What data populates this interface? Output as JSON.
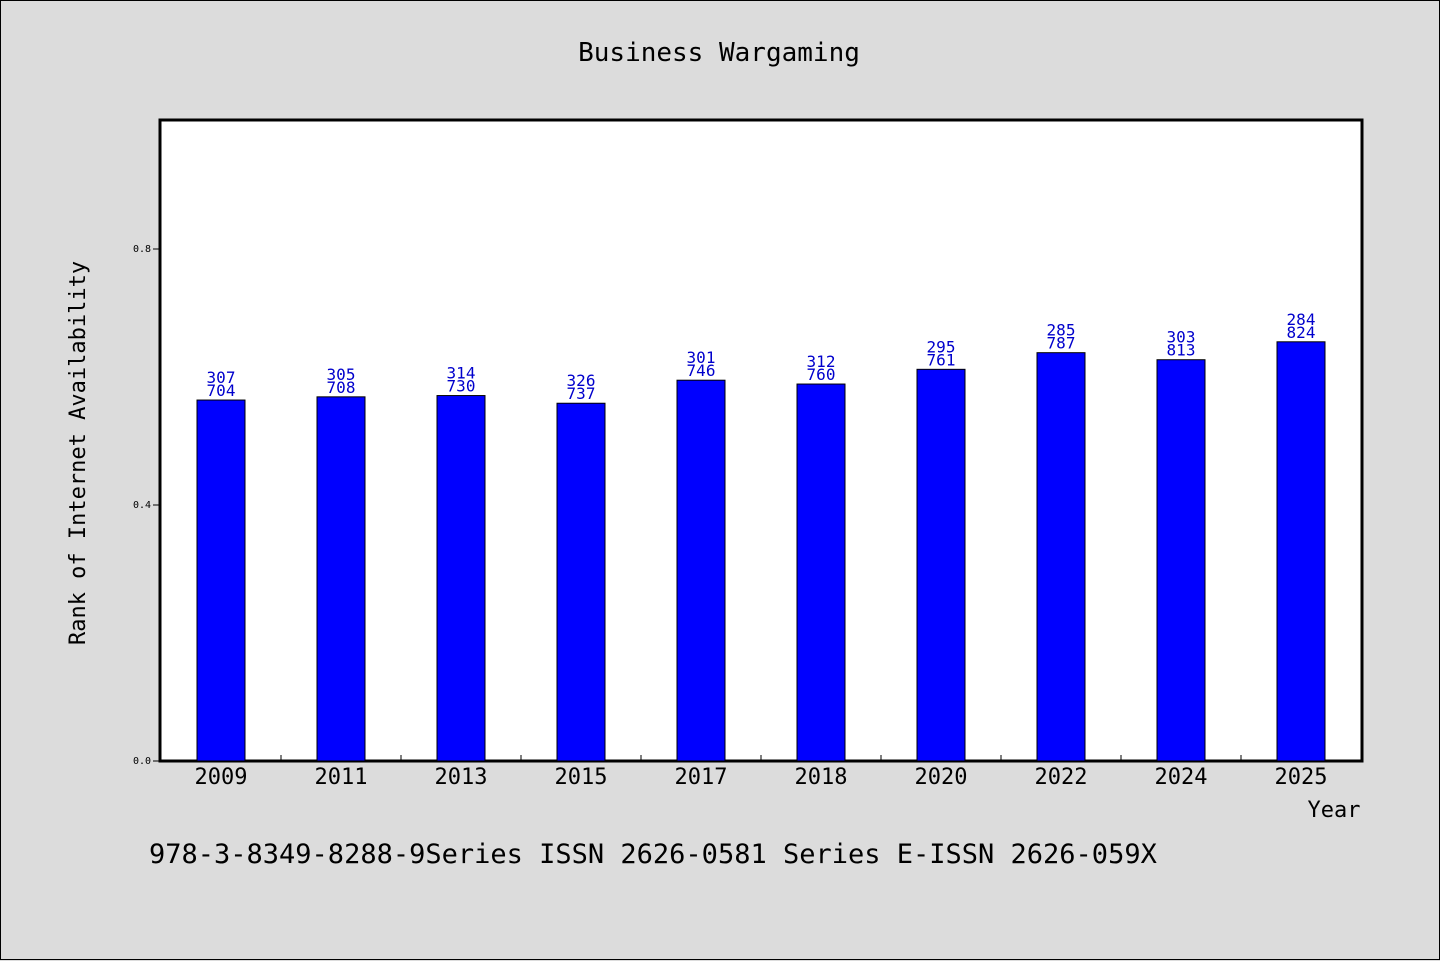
{
  "chart_data": {
    "type": "bar",
    "title": "Business Wargaming",
    "xlabel": "Year",
    "ylabel": "Rank of Internet Availability",
    "categories": [
      "2009",
      "2011",
      "2013",
      "2015",
      "2017",
      "2018",
      "2020",
      "2022",
      "2024",
      "2025"
    ],
    "values": [
      0.564,
      0.569,
      0.571,
      0.559,
      0.595,
      0.589,
      0.612,
      0.638,
      0.627,
      0.655
    ],
    "data_labels": [
      [
        "307",
        "704"
      ],
      [
        "305",
        "708"
      ],
      [
        "314",
        "730"
      ],
      [
        "326",
        "737"
      ],
      [
        "301",
        "746"
      ],
      [
        "312",
        "760"
      ],
      [
        "295",
        "761"
      ],
      [
        "285",
        "787"
      ],
      [
        "303",
        "813"
      ],
      [
        "284",
        "824"
      ]
    ],
    "ylim": [
      0.0,
      1.0
    ],
    "yticks": [
      "0.0",
      "0.4",
      "0.8"
    ],
    "ytick_values": [
      0.0,
      0.4,
      0.8
    ],
    "bar_color": "#0000ff",
    "label_color": "#0000cc",
    "grid": false
  },
  "footer": {
    "text": "978-3-8349-8288-9Series ISSN 2626-0581 Series E-ISSN 2626-059X"
  }
}
